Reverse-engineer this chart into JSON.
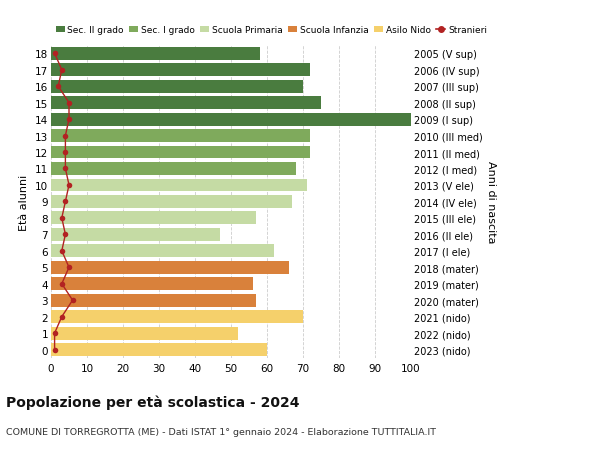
{
  "ages": [
    18,
    17,
    16,
    15,
    14,
    13,
    12,
    11,
    10,
    9,
    8,
    7,
    6,
    5,
    4,
    3,
    2,
    1,
    0
  ],
  "years": [
    "2005 (V sup)",
    "2006 (IV sup)",
    "2007 (III sup)",
    "2008 (II sup)",
    "2009 (I sup)",
    "2010 (III med)",
    "2011 (II med)",
    "2012 (I med)",
    "2013 (V ele)",
    "2014 (IV ele)",
    "2015 (III ele)",
    "2016 (II ele)",
    "2017 (I ele)",
    "2018 (mater)",
    "2019 (mater)",
    "2020 (mater)",
    "2021 (nido)",
    "2022 (nido)",
    "2023 (nido)"
  ],
  "values": [
    58,
    72,
    70,
    75,
    100,
    72,
    72,
    68,
    71,
    67,
    57,
    47,
    62,
    66,
    56,
    57,
    70,
    52,
    60
  ],
  "stranieri": [
    1,
    3,
    2,
    5,
    5,
    4,
    4,
    4,
    5,
    4,
    3,
    4,
    3,
    5,
    3,
    6,
    3,
    1,
    1
  ],
  "colors": [
    "#4a7c3f",
    "#4a7c3f",
    "#4a7c3f",
    "#4a7c3f",
    "#4a7c3f",
    "#7faa5c",
    "#7faa5c",
    "#7faa5c",
    "#c5dba4",
    "#c5dba4",
    "#c5dba4",
    "#c5dba4",
    "#c5dba4",
    "#d9813b",
    "#d9813b",
    "#d9813b",
    "#f5d06b",
    "#f5d06b",
    "#f5d06b"
  ],
  "legend_labels": [
    "Sec. II grado",
    "Sec. I grado",
    "Scuola Primaria",
    "Scuola Infanzia",
    "Asilo Nido",
    "Stranieri"
  ],
  "legend_colors": [
    "#4a7c3f",
    "#7faa5c",
    "#c5dba4",
    "#d9813b",
    "#f5d06b",
    "#b22222"
  ],
  "stranieri_color": "#b22222",
  "title": "Popolazione per età scolastica - 2024",
  "subtitle": "COMUNE DI TORREGROTTA (ME) - Dati ISTAT 1° gennaio 2024 - Elaborazione TUTTITALIA.IT",
  "ylabel_left": "Età alunni",
  "ylabel_right": "Anni di nascita",
  "xlim": [
    0,
    100
  ],
  "bg_color": "#ffffff",
  "grid_color": "#cccccc"
}
